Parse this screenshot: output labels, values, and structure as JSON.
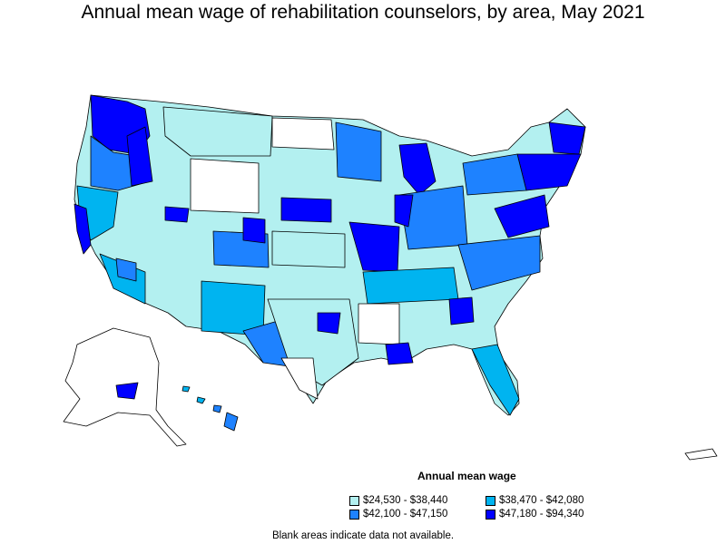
{
  "title": "Annual mean wage of rehabilitation counselors, by area, May 2021",
  "legend": {
    "title": "Annual mean wage",
    "items": [
      {
        "label": "$24,530 - $38,440",
        "color": "#b3f0f0"
      },
      {
        "label": "$38,470 - $42,080",
        "color": "#00b4f0"
      },
      {
        "label": "$42,100 - $47,150",
        "color": "#1e82ff"
      },
      {
        "label": "$47,180 - $94,340",
        "color": "#0000ff"
      }
    ]
  },
  "footnote": "Blank areas indicate data not available."
}
